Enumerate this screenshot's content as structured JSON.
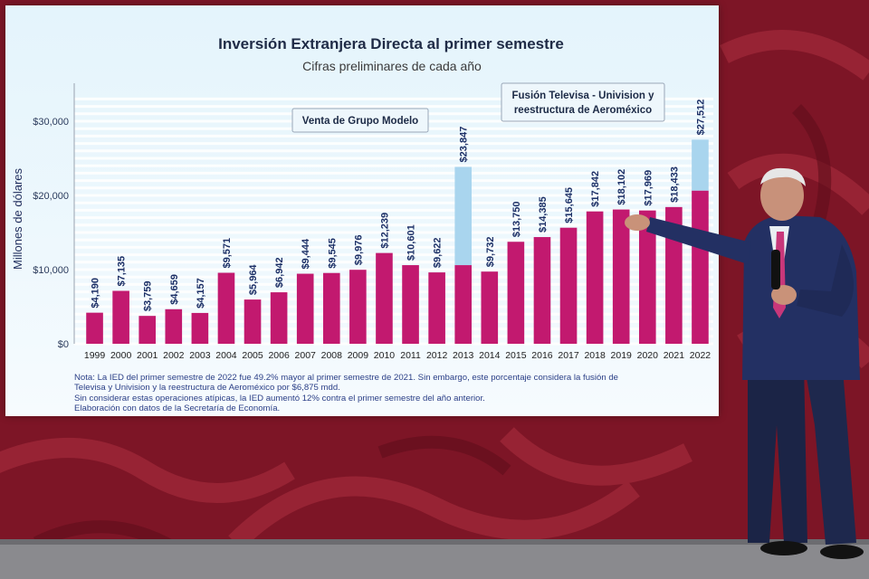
{
  "chart_data": {
    "type": "bar",
    "title": "Inversión Extranjera Directa al primer semestre",
    "subtitle": "Cifras preliminares de cada año",
    "ylabel": "Millones de dólares",
    "xlabel": "",
    "ylim": [
      0,
      30000
    ],
    "yticks": [
      0,
      10000,
      20000,
      30000
    ],
    "ytick_labels": [
      "$0",
      "$10,000",
      "$20,000",
      "$30,000"
    ],
    "grid": true,
    "categories": [
      "1999",
      "2000",
      "2001",
      "2002",
      "2003",
      "2004",
      "2005",
      "2006",
      "2007",
      "2008",
      "2009",
      "2010",
      "2011",
      "2012",
      "2013",
      "2014",
      "2015",
      "2016",
      "2017",
      "2018",
      "2019",
      "2020",
      "2021",
      "2022"
    ],
    "values": [
      4190,
      7135,
      3759,
      4659,
      4157,
      9571,
      5964,
      6942,
      9444,
      9545,
      9976,
      12239,
      10601,
      9622,
      23847,
      9732,
      13750,
      14385,
      15645,
      17842,
      18102,
      17969,
      18433,
      27512
    ],
    "value_labels": [
      "$4,190",
      "$7,135",
      "$3,759",
      "$4,659",
      "$4,157",
      "$9,571",
      "$5,964",
      "$6,942",
      "$9,444",
      "$9,545",
      "$9,976",
      "$12,239",
      "$10,601",
      "$9,622",
      "$23,847",
      "$9,732",
      "$13,750",
      "$14,385",
      "$15,645",
      "$17,842",
      "$18,102",
      "$17,969",
      "$18,433",
      "$27,512"
    ],
    "atypical_base": {
      "2013": 10600,
      "2022": 20637
    },
    "colors": {
      "bar": "#c2196f",
      "atypical": "#a9d5ee",
      "grid": "#ffffff"
    },
    "annotations": [
      {
        "category": "2013",
        "text": [
          "Venta de Grupo Modelo"
        ]
      },
      {
        "category": "2022",
        "text": [
          "Fusión Televisa - Univision y",
          "reestructura de Aeroméxico"
        ]
      }
    ]
  },
  "notes": [
    "Nota: La IED del primer semestre de 2022 fue 49.2% mayor al primer semestre de 2021. Sin embargo, este porcentaje considera la fusión de",
    "Televisa y Univision y la reestructura de Aeroméxico por $6,875 mdd.",
    "Sin considerar estas operaciones atípicas, la IED aumentó 12% contra el primer semestre del año anterior.",
    "Elaboración con datos de la Secretaría de Economía."
  ]
}
